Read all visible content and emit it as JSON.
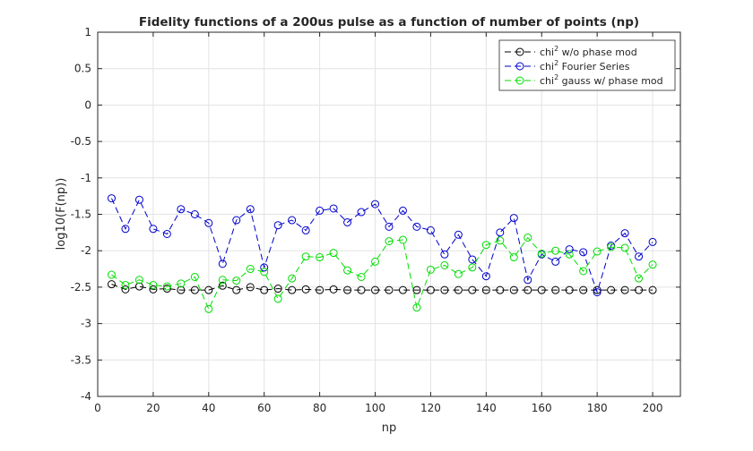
{
  "chart_data": {
    "type": "line",
    "title": "Fidelity functions of a 200us pulse as a function of number of points (np)",
    "xlabel": "np",
    "ylabel": "log10(F(np))",
    "xlim": [
      0,
      210
    ],
    "ylim": [
      -4,
      1
    ],
    "xticks": [
      "0",
      "20",
      "40",
      "60",
      "80",
      "100",
      "120",
      "140",
      "160",
      "180",
      "200"
    ],
    "yticks": [
      "1",
      "0.5",
      "0",
      "-0.5",
      "-1",
      "-1.5",
      "-2",
      "-2.5",
      "-3",
      "-3.5",
      "-4"
    ],
    "grid": true,
    "legend_position": "top-right",
    "x": [
      5,
      10,
      15,
      20,
      25,
      30,
      35,
      40,
      45,
      50,
      55,
      60,
      65,
      70,
      75,
      80,
      85,
      90,
      95,
      100,
      105,
      110,
      115,
      120,
      125,
      130,
      135,
      140,
      145,
      150,
      155,
      160,
      165,
      170,
      175,
      180,
      185,
      190,
      195,
      200
    ],
    "series": [
      {
        "name_prefix": "chi",
        "name_sup": "2",
        "name_suffix": " w/o phase mod",
        "color": "#000000",
        "values": [
          -2.46,
          -2.53,
          -2.49,
          -2.53,
          -2.52,
          -2.54,
          -2.54,
          -2.54,
          -2.48,
          -2.54,
          -2.5,
          -2.54,
          -2.52,
          -2.54,
          -2.53,
          -2.54,
          -2.53,
          -2.54,
          -2.54,
          -2.54,
          -2.54,
          -2.54,
          -2.54,
          -2.54,
          -2.54,
          -2.54,
          -2.54,
          -2.54,
          -2.54,
          -2.54,
          -2.54,
          -2.54,
          -2.54,
          -2.54,
          -2.54,
          -2.54,
          -2.54,
          -2.54,
          -2.54,
          -2.54
        ]
      },
      {
        "name_prefix": "chi",
        "name_sup": "2",
        "name_suffix": " Fourier Series",
        "color": "#0000cc",
        "values": [
          -1.28,
          -1.7,
          -1.3,
          -1.7,
          -1.77,
          -1.43,
          -1.5,
          -1.62,
          -2.18,
          -1.58,
          -1.43,
          -2.23,
          -1.65,
          -1.58,
          -1.72,
          -1.45,
          -1.42,
          -1.61,
          -1.47,
          -1.36,
          -1.67,
          -1.45,
          -1.67,
          -1.72,
          -2.05,
          -1.78,
          -2.12,
          -2.35,
          -1.75,
          -1.55,
          -2.4,
          -2.05,
          -2.15,
          -1.98,
          -2.02,
          -2.57,
          -1.93,
          -1.76,
          -2.08,
          -1.88
        ]
      },
      {
        "name_prefix": "chi",
        "name_sup": "2",
        "name_suffix": " gauss w/ phase mod",
        "color": "#00dd00",
        "values": [
          -2.33,
          -2.47,
          -2.4,
          -2.47,
          -2.49,
          -2.45,
          -2.36,
          -2.8,
          -2.4,
          -2.41,
          -2.25,
          -2.29,
          -2.66,
          -2.38,
          -2.08,
          -2.09,
          -2.03,
          -2.27,
          -2.36,
          -2.15,
          -1.87,
          -1.85,
          -2.78,
          -2.26,
          -2.2,
          -2.32,
          -2.23,
          -1.92,
          -1.86,
          -2.09,
          -1.82,
          -2.04,
          -2.0,
          -2.05,
          -2.28,
          -2.01,
          -1.95,
          -1.96,
          -2.38,
          -2.19
        ]
      }
    ]
  }
}
